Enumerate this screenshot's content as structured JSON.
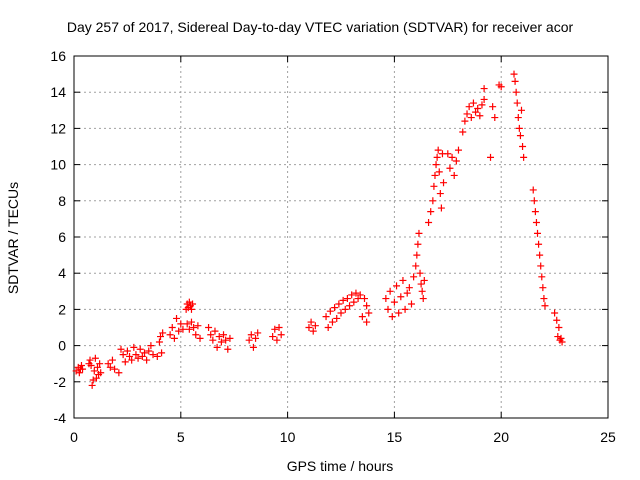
{
  "chart_data": {
    "type": "scatter",
    "title": "Day 257 of 2017, Sidereal Day-to-day VTEC variation (SDTVAR) for receiver acor",
    "xlabel": "GPS time / hours",
    "ylabel": "SDTVAR / TECUs",
    "xlim": [
      0,
      25
    ],
    "ylim": [
      -4,
      16
    ],
    "xticks": [
      "0",
      "5",
      "10",
      "15",
      "20",
      "25"
    ],
    "yticks": [
      "-4",
      "-2",
      "0",
      "2",
      "4",
      "6",
      "8",
      "10",
      "12",
      "14",
      "16"
    ],
    "grid": true,
    "marker": "+",
    "color": "#ff0000",
    "series": [
      {
        "name": "SDTVAR",
        "points": [
          [
            0.1,
            -1.4
          ],
          [
            0.2,
            -1.2
          ],
          [
            0.25,
            -1.5
          ],
          [
            0.3,
            -1.3
          ],
          [
            0.35,
            -1.1
          ],
          [
            0.4,
            -1.3
          ],
          [
            0.7,
            -1.0
          ],
          [
            0.75,
            -0.8
          ],
          [
            0.8,
            -1.1
          ],
          [
            0.85,
            -2.2
          ],
          [
            0.9,
            -1.9
          ],
          [
            0.95,
            -1.4
          ],
          [
            1.0,
            -0.7
          ],
          [
            1.05,
            -1.8
          ],
          [
            1.1,
            -1.2
          ],
          [
            1.15,
            -1.6
          ],
          [
            1.2,
            -1.0
          ],
          [
            1.25,
            -1.5
          ],
          [
            1.6,
            -1.0
          ],
          [
            1.7,
            -1.2
          ],
          [
            1.8,
            -0.8
          ],
          [
            1.9,
            -1.3
          ],
          [
            2.1,
            -1.5
          ],
          [
            2.2,
            -0.2
          ],
          [
            2.3,
            -0.5
          ],
          [
            2.4,
            -0.9
          ],
          [
            2.5,
            -0.3
          ],
          [
            2.6,
            -0.6
          ],
          [
            2.7,
            -0.8
          ],
          [
            2.8,
            -0.1
          ],
          [
            2.9,
            -0.5
          ],
          [
            3.0,
            -0.7
          ],
          [
            3.1,
            -0.2
          ],
          [
            3.2,
            -0.6
          ],
          [
            3.3,
            -0.4
          ],
          [
            3.4,
            -0.8
          ],
          [
            3.5,
            -0.3
          ],
          [
            3.6,
            0.0
          ],
          [
            3.7,
            -0.5
          ],
          [
            3.9,
            -0.6
          ],
          [
            4.0,
            0.2
          ],
          [
            4.05,
            0.5
          ],
          [
            4.1,
            -0.4
          ],
          [
            4.15,
            0.7
          ],
          [
            4.5,
            0.6
          ],
          [
            4.6,
            1.0
          ],
          [
            4.7,
            0.4
          ],
          [
            4.8,
            1.5
          ],
          [
            4.9,
            0.8
          ],
          [
            5.0,
            1.2
          ],
          [
            5.1,
            0.9
          ],
          [
            5.25,
            2.0
          ],
          [
            5.3,
            2.3
          ],
          [
            5.35,
            2.1
          ],
          [
            5.4,
            2.4
          ],
          [
            5.45,
            2.2
          ],
          [
            5.5,
            2.0
          ],
          [
            5.55,
            2.3
          ],
          [
            5.3,
            1.2
          ],
          [
            5.4,
            0.9
          ],
          [
            5.5,
            1.3
          ],
          [
            5.6,
            1.0
          ],
          [
            5.7,
            0.6
          ],
          [
            5.8,
            1.1
          ],
          [
            5.9,
            0.4
          ],
          [
            6.3,
            1.0
          ],
          [
            6.4,
            0.6
          ],
          [
            6.5,
            0.3
          ],
          [
            6.6,
            0.8
          ],
          [
            6.7,
            -0.1
          ],
          [
            6.8,
            0.5
          ],
          [
            6.9,
            0.2
          ],
          [
            7.0,
            0.6
          ],
          [
            7.1,
            0.3
          ],
          [
            7.2,
            -0.2
          ],
          [
            7.3,
            0.4
          ],
          [
            8.2,
            0.3
          ],
          [
            8.3,
            0.6
          ],
          [
            8.4,
            -0.1
          ],
          [
            8.5,
            0.4
          ],
          [
            8.6,
            0.7
          ],
          [
            9.3,
            0.5
          ],
          [
            9.4,
            0.9
          ],
          [
            9.5,
            0.3
          ],
          [
            9.6,
            1.0
          ],
          [
            9.7,
            0.6
          ],
          [
            11.0,
            1.0
          ],
          [
            11.1,
            1.3
          ],
          [
            11.2,
            0.8
          ],
          [
            11.3,
            1.1
          ],
          [
            11.8,
            1.6
          ],
          [
            11.9,
            1.0
          ],
          [
            12.0,
            1.9
          ],
          [
            12.1,
            1.3
          ],
          [
            12.2,
            2.1
          ],
          [
            12.3,
            1.5
          ],
          [
            12.4,
            2.3
          ],
          [
            12.5,
            1.8
          ],
          [
            12.6,
            2.5
          ],
          [
            12.7,
            2.0
          ],
          [
            12.8,
            2.6
          ],
          [
            12.9,
            2.2
          ],
          [
            13.0,
            2.8
          ],
          [
            13.1,
            2.4
          ],
          [
            13.2,
            2.9
          ],
          [
            13.3,
            2.6
          ],
          [
            13.4,
            2.8
          ],
          [
            13.6,
            2.6
          ],
          [
            13.7,
            2.2
          ],
          [
            13.8,
            1.8
          ],
          [
            13.5,
            1.6
          ],
          [
            13.7,
            1.3
          ],
          [
            14.6,
            2.6
          ],
          [
            14.7,
            2.0
          ],
          [
            14.8,
            3.0
          ],
          [
            14.9,
            1.6
          ],
          [
            15.0,
            2.4
          ],
          [
            15.1,
            3.3
          ],
          [
            15.2,
            1.8
          ],
          [
            15.3,
            2.7
          ],
          [
            15.4,
            3.6
          ],
          [
            15.5,
            2.0
          ],
          [
            15.6,
            2.9
          ],
          [
            15.7,
            3.2
          ],
          [
            15.8,
            2.3
          ],
          [
            15.9,
            3.8
          ],
          [
            16.0,
            4.4
          ],
          [
            16.05,
            5.0
          ],
          [
            16.1,
            5.6
          ],
          [
            16.15,
            6.2
          ],
          [
            16.2,
            4.0
          ],
          [
            16.25,
            3.4
          ],
          [
            16.3,
            3.0
          ],
          [
            16.35,
            2.6
          ],
          [
            16.4,
            3.6
          ],
          [
            16.6,
            6.8
          ],
          [
            16.7,
            7.4
          ],
          [
            16.8,
            8.0
          ],
          [
            16.85,
            8.8
          ],
          [
            16.9,
            9.4
          ],
          [
            16.95,
            10.0
          ],
          [
            17.0,
            10.4
          ],
          [
            17.05,
            10.8
          ],
          [
            17.1,
            9.6
          ],
          [
            17.15,
            8.4
          ],
          [
            17.2,
            7.6
          ],
          [
            17.25,
            10.6
          ],
          [
            17.3,
            9.0
          ],
          [
            17.5,
            10.6
          ],
          [
            17.6,
            9.8
          ],
          [
            17.7,
            10.4
          ],
          [
            17.8,
            9.4
          ],
          [
            17.9,
            10.2
          ],
          [
            18.0,
            10.8
          ],
          [
            18.2,
            11.8
          ],
          [
            18.3,
            12.4
          ],
          [
            18.4,
            12.8
          ],
          [
            18.5,
            13.2
          ],
          [
            18.6,
            12.6
          ],
          [
            18.7,
            13.4
          ],
          [
            18.8,
            12.9
          ],
          [
            18.9,
            13.1
          ],
          [
            19.0,
            12.7
          ],
          [
            19.1,
            13.3
          ],
          [
            19.2,
            13.6
          ],
          [
            19.2,
            14.2
          ],
          [
            19.5,
            10.4
          ],
          [
            19.6,
            13.2
          ],
          [
            19.7,
            12.6
          ],
          [
            19.9,
            14.4
          ],
          [
            20.0,
            14.3
          ],
          [
            20.6,
            15.0
          ],
          [
            20.65,
            14.6
          ],
          [
            20.7,
            14.0
          ],
          [
            20.75,
            13.4
          ],
          [
            20.8,
            12.6
          ],
          [
            20.85,
            12.0
          ],
          [
            20.9,
            11.6
          ],
          [
            20.95,
            13.0
          ],
          [
            21.0,
            11.0
          ],
          [
            21.05,
            10.4
          ],
          [
            21.5,
            8.6
          ],
          [
            21.55,
            8.0
          ],
          [
            21.6,
            7.4
          ],
          [
            21.65,
            6.8
          ],
          [
            21.7,
            6.2
          ],
          [
            21.75,
            5.6
          ],
          [
            21.8,
            5.0
          ],
          [
            21.85,
            4.4
          ],
          [
            21.9,
            3.8
          ],
          [
            21.95,
            3.2
          ],
          [
            22.0,
            2.6
          ],
          [
            22.05,
            2.2
          ],
          [
            22.5,
            1.8
          ],
          [
            22.6,
            1.4
          ],
          [
            22.7,
            1.0
          ],
          [
            22.65,
            0.5
          ],
          [
            22.75,
            0.3
          ],
          [
            22.8,
            0.4
          ],
          [
            22.85,
            0.2
          ]
        ]
      }
    ]
  }
}
